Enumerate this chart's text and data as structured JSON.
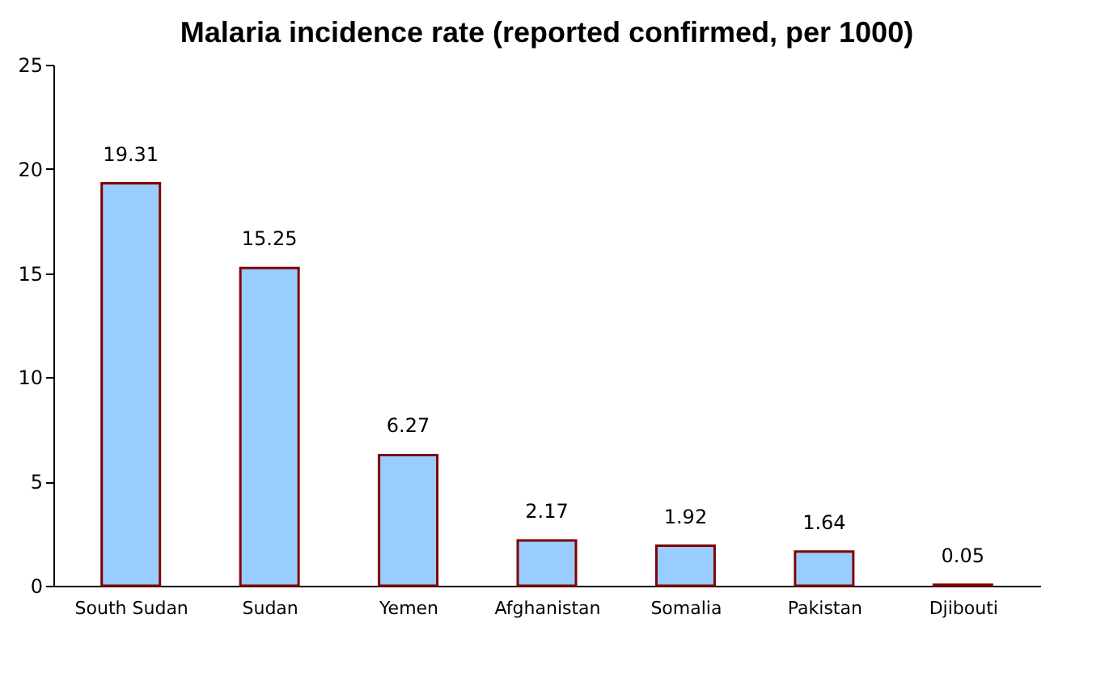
{
  "chart_data": {
    "type": "bar",
    "title": "Malaria incidence rate (reported confirmed, per 1000)",
    "categories": [
      "South Sudan",
      "Sudan",
      "Yemen",
      "Afghanistan",
      "Somalia",
      "Pakistan",
      "Djibouti"
    ],
    "values": [
      19.31,
      15.25,
      6.27,
      2.17,
      1.92,
      1.64,
      0.05
    ],
    "color": "#99ccff",
    "ylim": [
      0,
      25
    ],
    "yticks": [
      0,
      5,
      10,
      15,
      20,
      25
    ],
    "data_labels": true,
    "grid": false
  }
}
